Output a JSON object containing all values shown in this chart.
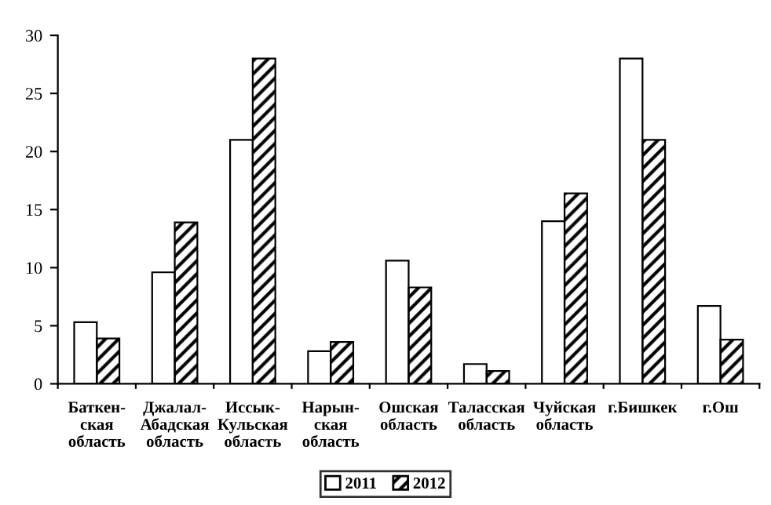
{
  "chart_data": {
    "type": "bar",
    "categories": [
      "Баткен-\nская\nобласть",
      "Джалал-\nАбадская\nобласть",
      "Иссык-\nКульская\nобласть",
      "Нарын-\nская\nобласть",
      "Ошская\nобласть",
      "Таласская\nобласть",
      "Чуйская\nобласть",
      "г.Бишкек",
      "г.Ош"
    ],
    "series": [
      {
        "name": "2011",
        "color": "#ffffff",
        "values": [
          5.3,
          9.6,
          21,
          2.8,
          10.6,
          1.7,
          14,
          28,
          6.7
        ]
      },
      {
        "name": "2012",
        "color": "#000000",
        "values": [
          3.9,
          13.9,
          28,
          3.6,
          8.3,
          1.1,
          16.4,
          21,
          3.8
        ]
      }
    ],
    "ylim": [
      0,
      30
    ],
    "yticks": [
      0,
      5,
      10,
      15,
      20,
      25,
      30
    ],
    "grid": false,
    "legend": "bottom"
  }
}
